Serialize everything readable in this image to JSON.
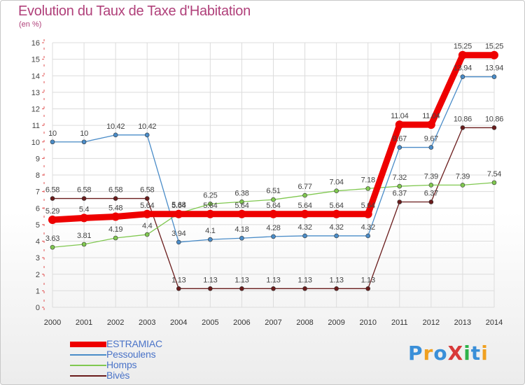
{
  "page": {
    "title": "Evolution du Taux de Taxe d'Habitation",
    "subtitle": "(en %)",
    "brand": "ProXiti"
  },
  "brand_colors": [
    "#3a8fd8",
    "#f0a020",
    "#3a8fd8",
    "#d83a3a",
    "#2db34a",
    "#3a8fd8",
    "#f0a020"
  ],
  "chart_data": {
    "type": "line",
    "x": [
      "2000",
      "2001",
      "2002",
      "2003",
      "2004",
      "2005",
      "2006",
      "2007",
      "2008",
      "2009",
      "2010",
      "2011",
      "2012",
      "2013",
      "2014"
    ],
    "ylim": [
      0,
      16
    ],
    "yticks": [
      0,
      1,
      2,
      3,
      4,
      5,
      6,
      7,
      8,
      9,
      10,
      11,
      12,
      13,
      14,
      15,
      16
    ],
    "grid": true,
    "legend_position": "bottom-left",
    "series": [
      {
        "name": "ESTRAMIAC",
        "color": "#ee0000",
        "values": [
          5.29,
          5.4,
          5.48,
          5.64,
          5.64,
          5.64,
          5.64,
          5.64,
          5.64,
          5.64,
          5.64,
          11.04,
          11.04,
          15.25,
          15.25
        ],
        "labels": [
          "5.29",
          "5.4",
          "5.48",
          "5.64",
          "5.64",
          "5.64",
          "5.64",
          "5.64",
          "5.64",
          "5.64",
          "5.64",
          "11.04",
          "11.04",
          "15.25",
          "15.25"
        ]
      },
      {
        "name": "Pessoulens",
        "color": "#4a8cc8",
        "values": [
          10,
          10,
          10.42,
          10.42,
          3.94,
          4.1,
          4.18,
          4.28,
          4.32,
          4.32,
          4.32,
          9.67,
          9.67,
          13.94,
          13.94
        ],
        "labels": [
          "10",
          "10",
          "10.42",
          "10.42",
          "3.94",
          "4.1",
          "4.18",
          "4.28",
          "4.32",
          "4.32",
          "4.32",
          "9.67",
          "9.67",
          "13.94",
          "13.94"
        ]
      },
      {
        "name": "Homps",
        "color": "#80c850",
        "values": [
          3.63,
          3.81,
          4.19,
          4.4,
          5.68,
          6.25,
          6.38,
          6.51,
          6.77,
          7.04,
          7.18,
          7.32,
          7.39,
          7.39,
          7.54
        ],
        "labels": [
          "3.63",
          "3.81",
          "4.19",
          "4.4",
          "5.68",
          "6.25",
          "6.38",
          "6.51",
          "6.77",
          "7.04",
          "7.18",
          "7.32",
          "7.39",
          "7.39",
          "7.54"
        ]
      },
      {
        "name": "Bivès",
        "color": "#6a1c1c",
        "values": [
          6.58,
          6.58,
          6.58,
          6.58,
          1.13,
          1.13,
          1.13,
          1.13,
          1.13,
          1.13,
          1.13,
          6.37,
          6.37,
          10.86,
          10.86
        ],
        "labels": [
          "6.58",
          "6.58",
          "6.58",
          "6.58",
          "1.13",
          "1.13",
          "1.13",
          "1.13",
          "1.13",
          "1.13",
          "1.13",
          "6.37",
          "6.37",
          "10.86",
          "10.86"
        ]
      }
    ]
  }
}
